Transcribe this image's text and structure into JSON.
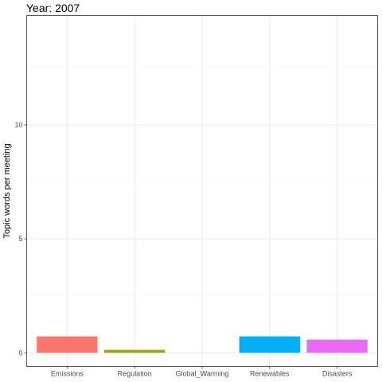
{
  "chart_data": {
    "type": "bar",
    "title": "Year: 2007",
    "xlabel": "",
    "ylabel": "Topic words per meeting",
    "categories": [
      "Emissions",
      "Regulation",
      "Global_Warming",
      "Renewables",
      "Disasters"
    ],
    "values": [
      0.72,
      0.13,
      0.0,
      0.72,
      0.58
    ],
    "colors": [
      "#F8766D",
      "#A3A500",
      "#00BF7D",
      "#00B0F6",
      "#E76BF3"
    ],
    "ylim": [
      -0.6,
      14.8
    ],
    "yticks": [
      0,
      5,
      10
    ],
    "ytick_labels": [
      "0",
      "5",
      "10"
    ],
    "grid": true,
    "legend": "none"
  }
}
